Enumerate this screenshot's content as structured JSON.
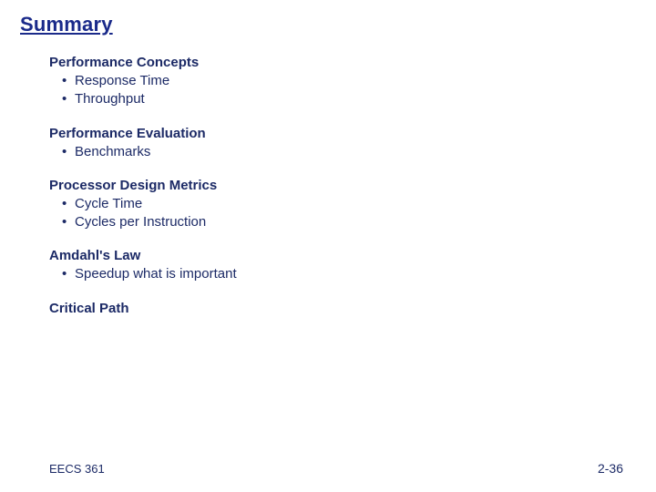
{
  "colors": {
    "title": "#1a2a8a",
    "body": "#1c2a66",
    "footer": "#1c2a66"
  },
  "title": "Summary",
  "sections": [
    {
      "heading": "Performance Concepts",
      "items": [
        "Response Time",
        "Throughput"
      ]
    },
    {
      "heading": "Performance Evaluation",
      "items": [
        "Benchmarks"
      ]
    },
    {
      "heading": "Processor Design Metrics",
      "items": [
        "Cycle Time",
        "Cycles per Instruction"
      ]
    },
    {
      "heading": "Amdahl's Law",
      "items": [
        "Speedup what is important"
      ]
    },
    {
      "heading": "Critical Path",
      "items": []
    }
  ],
  "footer": {
    "left": "EECS 361",
    "right": "2-36"
  }
}
